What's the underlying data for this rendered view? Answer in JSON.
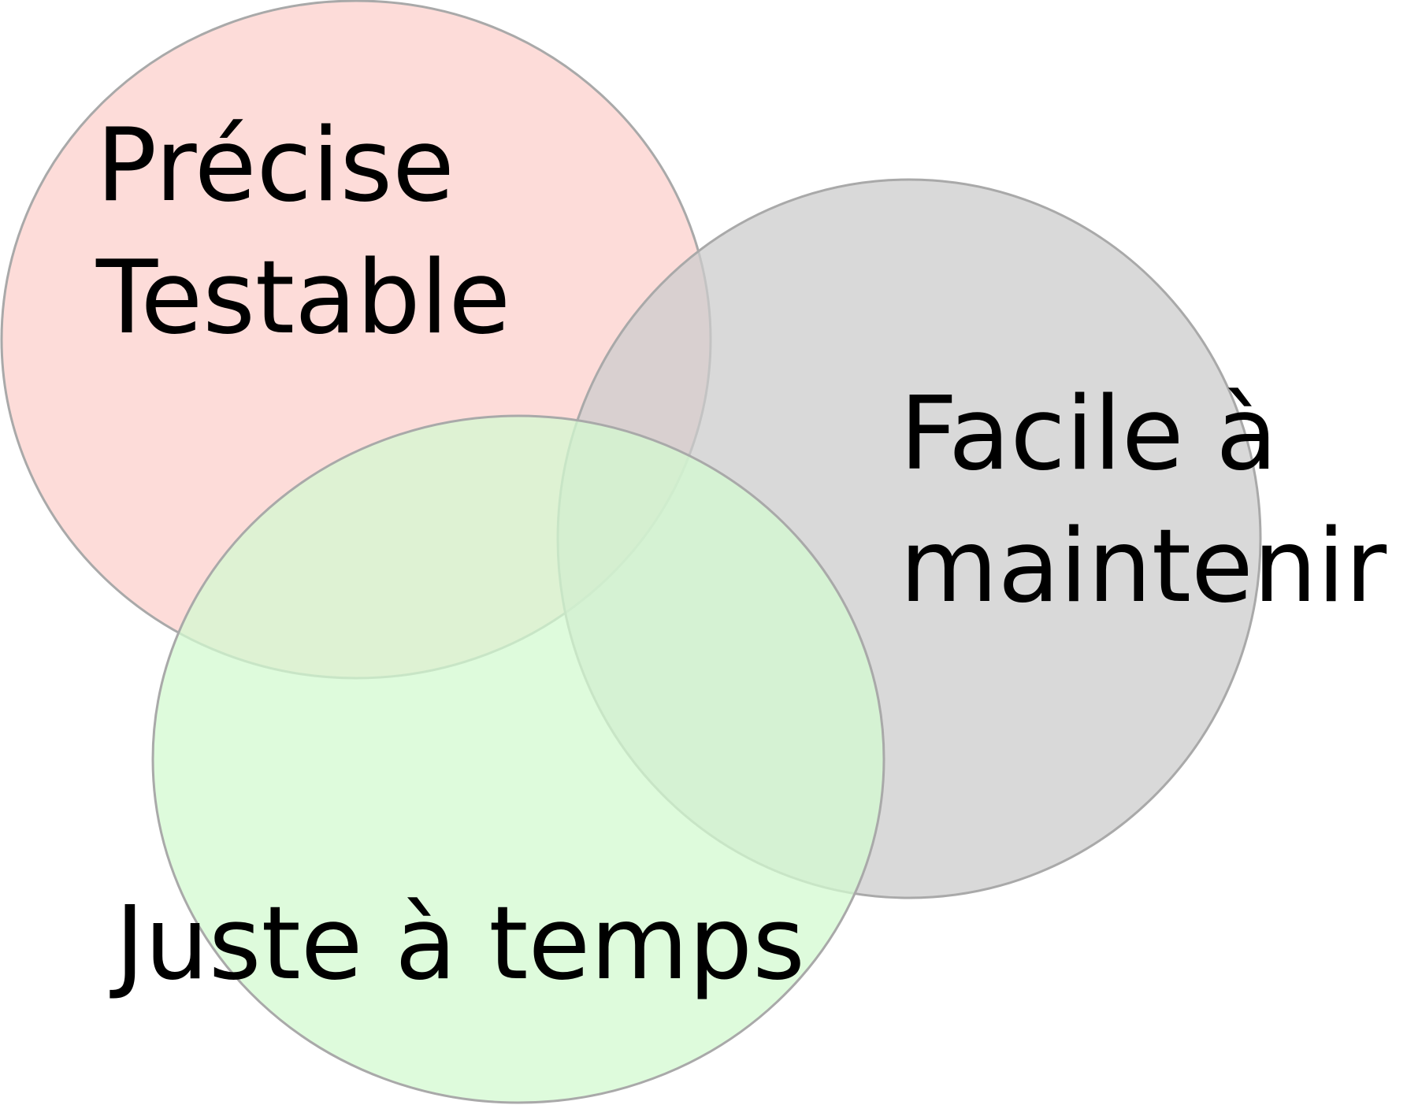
{
  "diagram": {
    "sets": [
      {
        "id": "precise",
        "lines": [
          "Précise",
          "Testable"
        ],
        "fill": "#fdd3cf",
        "stroke": "#a9a9a9"
      },
      {
        "id": "maintainable",
        "lines": [
          "Facile à",
          "maintenir"
        ],
        "fill": "#cccccc",
        "stroke": "#a9a9a9"
      },
      {
        "id": "just-in-time",
        "lines": [
          "Juste à temps"
        ],
        "fill": "#d3fad0",
        "stroke": "#a9a9a9"
      }
    ]
  }
}
